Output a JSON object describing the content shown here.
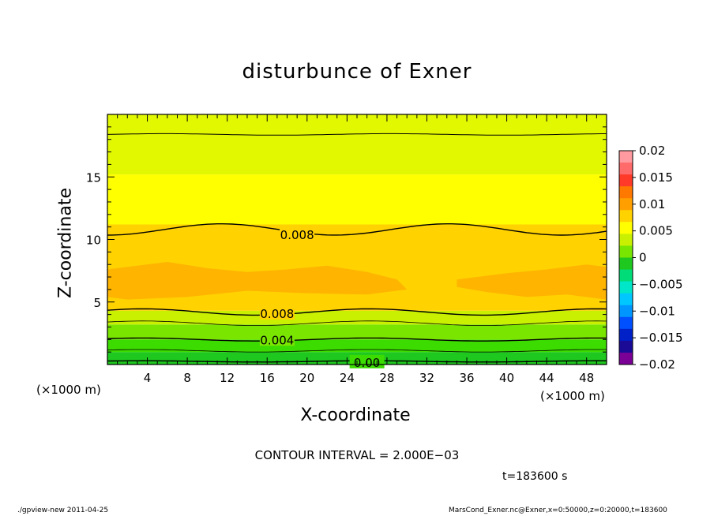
{
  "chart_data": {
    "type": "heatmap",
    "title": "disturbunce of Exner",
    "xlabel": "X-coordinate",
    "ylabel": "Z-coordinate",
    "x_unit_label": "(×1000 m)",
    "x_unit_label_right": "(×1000 m)",
    "xlim": [
      0,
      50
    ],
    "ylim": [
      0,
      20
    ],
    "x_ticks": [
      4,
      8,
      12,
      16,
      20,
      24,
      28,
      32,
      36,
      40,
      44,
      48
    ],
    "y_ticks": [
      5,
      10,
      15
    ],
    "colorbar": {
      "ticks": [
        "0.02",
        "0.015",
        "0.01",
        "0.005",
        "0",
        "−0.005",
        "−0.01",
        "−0.015",
        "−0.02"
      ],
      "range": [
        -0.02,
        0.02
      ]
    },
    "contour_labels": [
      {
        "text": "0.008",
        "x": 19,
        "z": 10.4
      },
      {
        "text": "0.008",
        "x": 17,
        "z": 4.1
      },
      {
        "text": "0.004",
        "x": 17,
        "z": 2.0
      },
      {
        "text": "0.00",
        "x": 26,
        "z": 0.2
      }
    ],
    "field_levels": [
      {
        "z_min": 0.0,
        "z_max": 1.0,
        "value": -0.002,
        "color": "#1ec81e"
      },
      {
        "z_min": 1.0,
        "z_max": 2.0,
        "value": 0.002,
        "color": "#3cdc00"
      },
      {
        "z_min": 2.0,
        "z_max": 3.2,
        "value": 0.004,
        "color": "#7ae600"
      },
      {
        "z_min": 3.2,
        "z_max": 4.3,
        "value": 0.006,
        "color": "#c8f000"
      },
      {
        "z_min": 4.3,
        "z_max": 11.2,
        "value": 0.009,
        "color": "#ffd200"
      },
      {
        "z_min": 11.2,
        "z_max": 15.2,
        "value": 0.007,
        "color": "#ffff00"
      },
      {
        "z_min": 15.2,
        "z_max": 20.0,
        "value": 0.005,
        "color": "#e2f800"
      }
    ]
  },
  "contour_interval_text": "CONTOUR INTERVAL = 2.000E−03",
  "time_text": "t=183600 s",
  "footer_left": "./gpview-new   2011-04-25",
  "footer_right": "MarsCond_Exner.nc@Exner,x=0:50000,z=0:20000,t=183600"
}
